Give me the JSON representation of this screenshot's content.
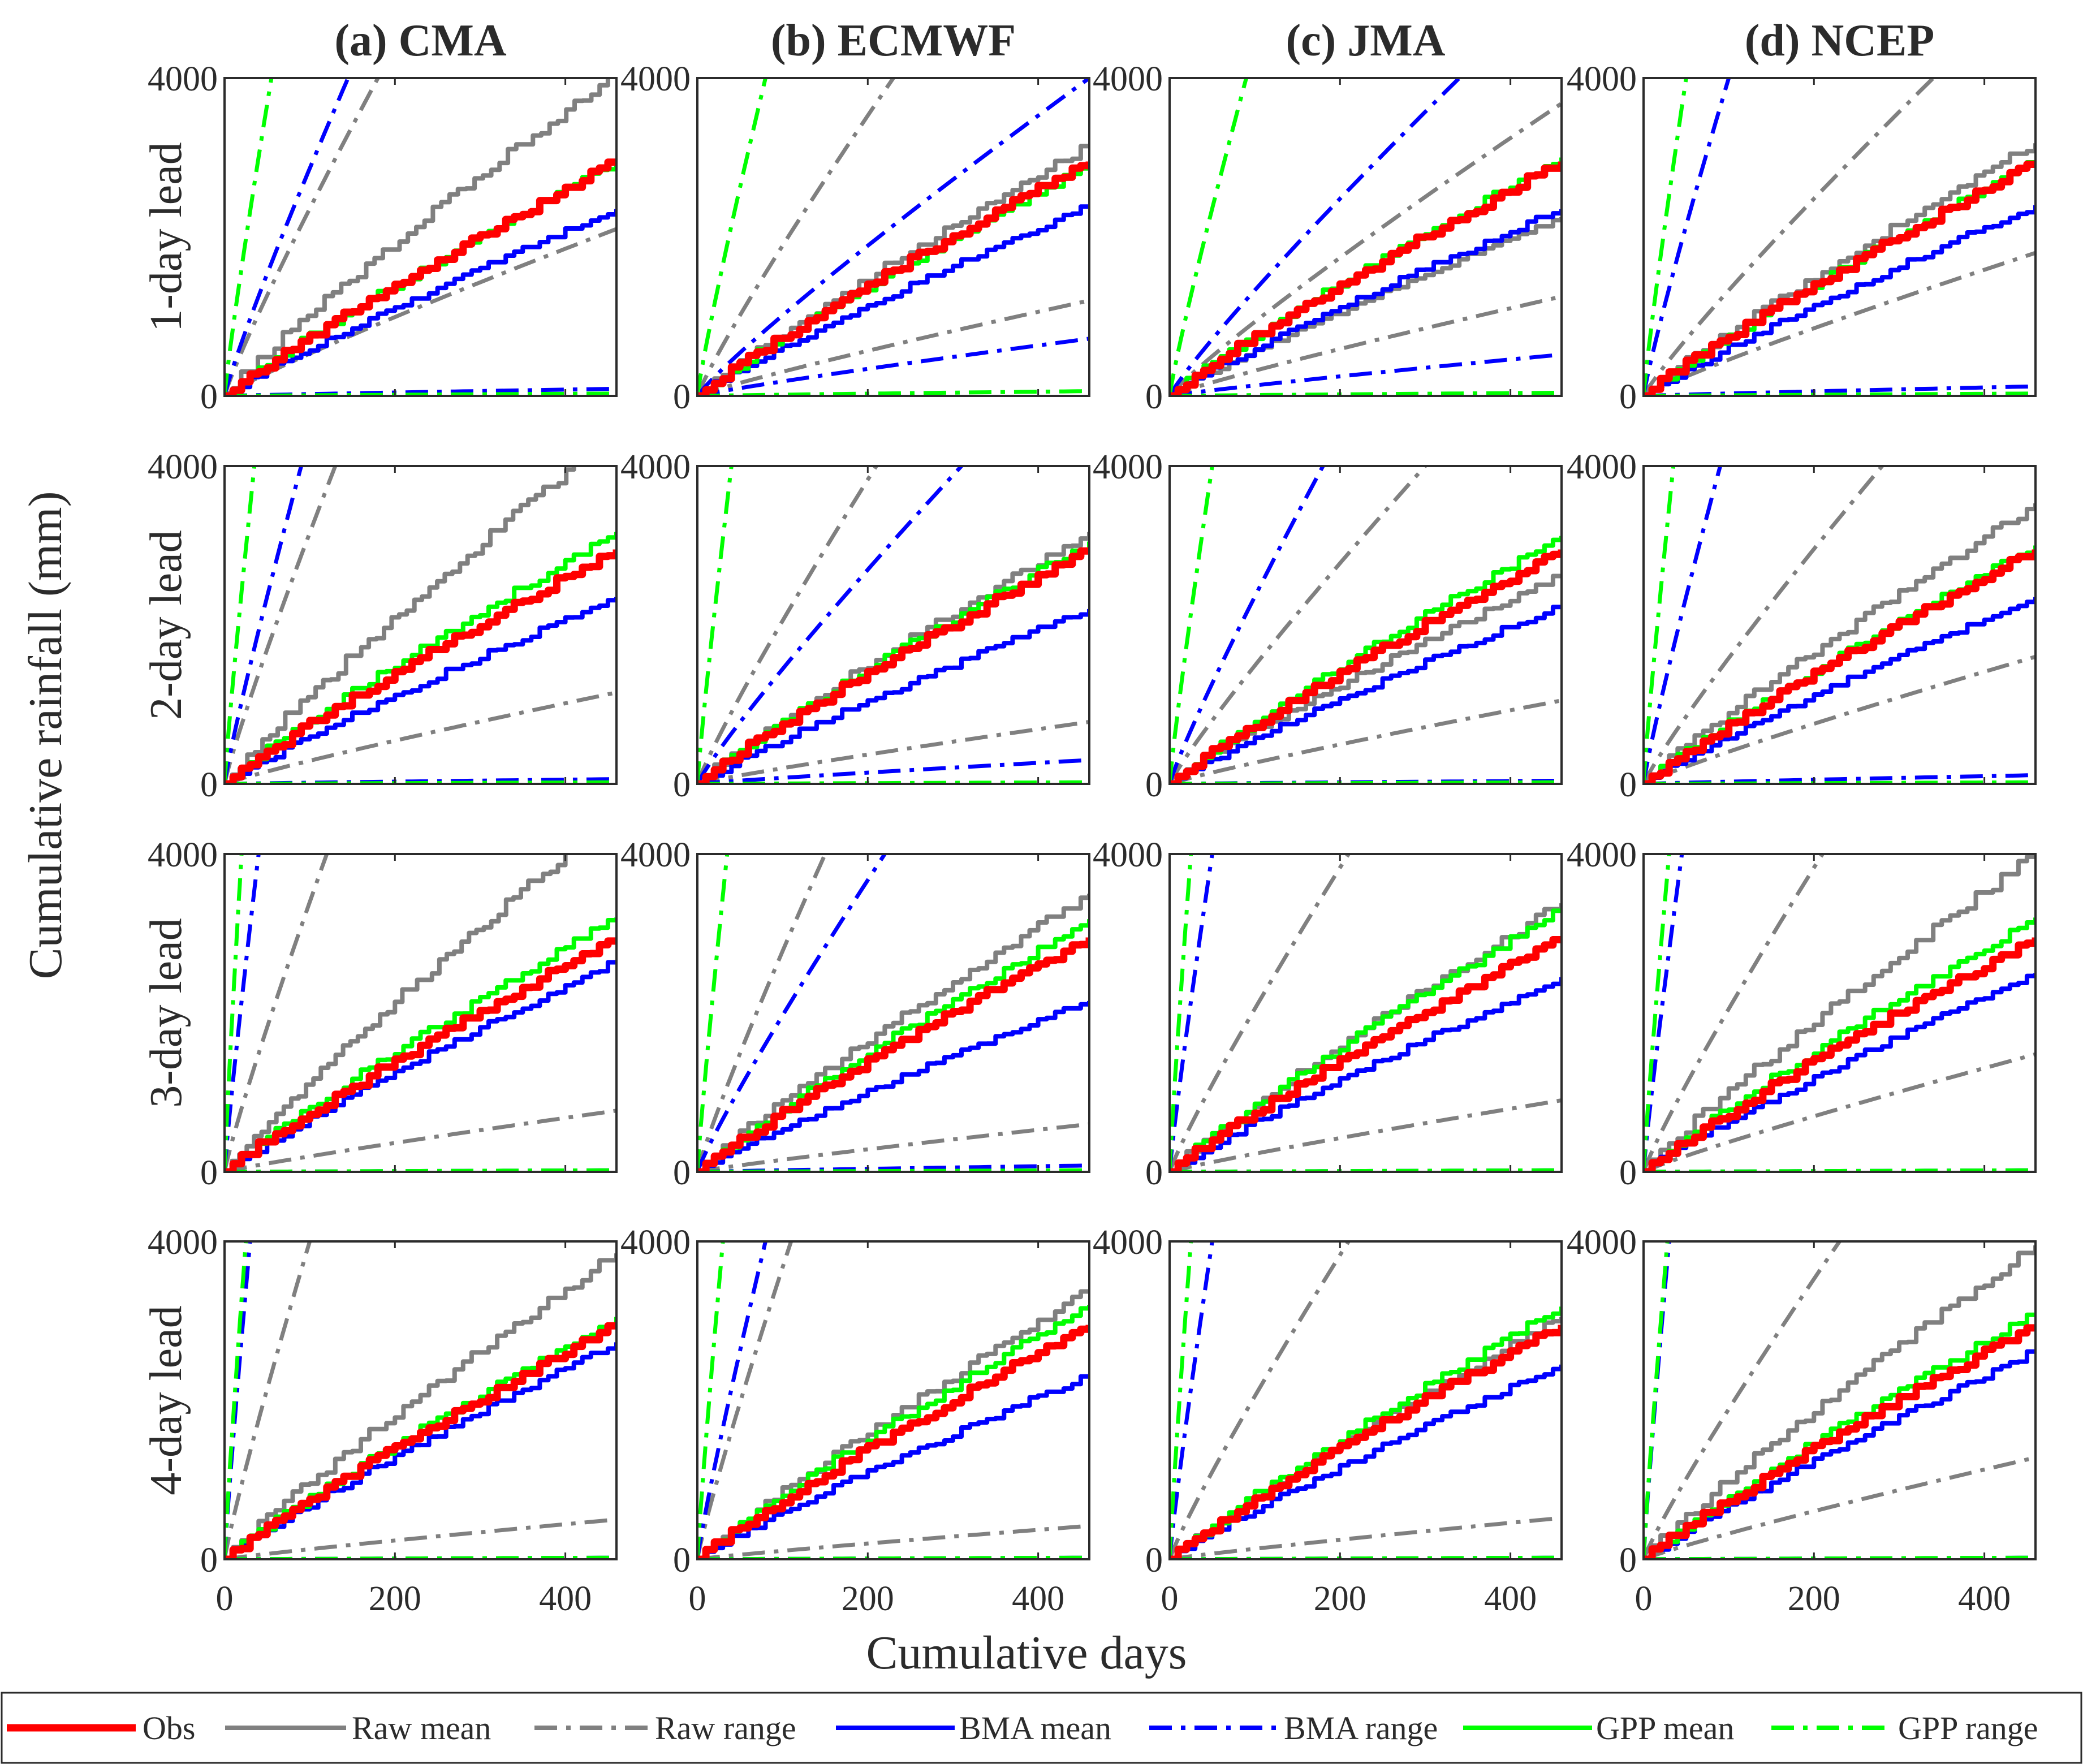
{
  "chart_data": {
    "type": "line",
    "layout_grid": "4 rows x 4 columns of line-chart panels",
    "columns": [
      "(a) CMA",
      "(b) ECMWF",
      "(c) JMA",
      "(d) NCEP"
    ],
    "rows": [
      "1-day lead",
      "2-day lead",
      "3-day lead",
      "4-day lead"
    ],
    "xlabel": "Cumulative days",
    "ylabel": "Cumulative rainfall (mm)",
    "xlim": [
      0,
      460
    ],
    "ylim": [
      0,
      4000
    ],
    "xticks": [
      "0",
      "200",
      "400"
    ],
    "yticks": [
      "0",
      "4000"
    ],
    "grid": false,
    "legend_position": "bottom",
    "series_styles": [
      {
        "name": "Obs",
        "color": "#ff0000",
        "dash": "solid",
        "thick": true
      },
      {
        "name": "Raw mean",
        "color": "#808080",
        "dash": "solid",
        "thick": false
      },
      {
        "name": "Raw range",
        "color": "#808080",
        "dash": "dashdot",
        "thick": false
      },
      {
        "name": "BMA mean",
        "color": "#0000ff",
        "dash": "solid",
        "thick": false
      },
      {
        "name": "BMA range",
        "color": "#0000ff",
        "dash": "dashdot",
        "thick": false
      },
      {
        "name": "GPP mean",
        "color": "#00ff00",
        "dash": "solid",
        "thick": false
      },
      {
        "name": "GPP range",
        "color": "#00ff00",
        "dash": "dashdot",
        "thick": false
      }
    ],
    "series_note": "Each series value is [x at which the line reaches the 4000 mm top (or null), y at x=460 in mm]",
    "panels": [
      {
        "row": 0,
        "col": 0,
        "series": {
          "Obs": [
            null,
            2950
          ],
          "Raw mean": [
            450,
            4000
          ],
          "Raw range upper": [
            180,
            4000
          ],
          "Raw range lower": [
            null,
            2100
          ],
          "BMA mean": [
            null,
            2350
          ],
          "BMA range upper": [
            145,
            4000
          ],
          "BMA range lower": [
            null,
            90
          ],
          "GPP mean": [
            null,
            2950
          ],
          "GPP range upper": [
            55,
            4000
          ],
          "GPP range lower": [
            null,
            30
          ]
        }
      },
      {
        "row": 0,
        "col": 1,
        "series": {
          "Obs": [
            null,
            2950
          ],
          "Raw mean": [
            null,
            3150
          ],
          "Raw range upper": [
            230,
            4000
          ],
          "Raw range lower": [
            null,
            1200
          ],
          "BMA mean": [
            null,
            2400
          ],
          "BMA range upper": [
            460,
            4000
          ],
          "BMA range lower": [
            null,
            720
          ],
          "GPP mean": [
            null,
            2900
          ],
          "GPP range upper": [
            80,
            4000
          ],
          "GPP range lower": [
            null,
            60
          ]
        }
      },
      {
        "row": 0,
        "col": 2,
        "series": {
          "Obs": [
            null,
            2950
          ],
          "Raw mean": [
            null,
            2250
          ],
          "Raw range upper": [
            null,
            3680
          ],
          "Raw range lower": [
            null,
            1250
          ],
          "BMA mean": [
            null,
            2350
          ],
          "BMA range upper": [
            340,
            4000
          ],
          "BMA range lower": [
            null,
            520
          ],
          "GPP mean": [
            null,
            3000
          ],
          "GPP range upper": [
            90,
            4000
          ],
          "GPP range lower": [
            null,
            40
          ]
        }
      },
      {
        "row": 0,
        "col": 3,
        "series": {
          "Obs": [
            null,
            2950
          ],
          "Raw mean": [
            null,
            3180
          ],
          "Raw range upper": [
            340,
            4000
          ],
          "Raw range lower": [
            null,
            1800
          ],
          "BMA mean": [
            null,
            2400
          ],
          "BMA range upper": [
            100,
            4000
          ],
          "BMA range lower": [
            null,
            120
          ],
          "GPP mean": [
            null,
            2960
          ],
          "GPP range upper": [
            50,
            4000
          ],
          "GPP range lower": [
            null,
            30
          ]
        }
      },
      {
        "row": 1,
        "col": 0,
        "series": {
          "Obs": [
            null,
            2950
          ],
          "Raw mean": [
            410,
            4000
          ],
          "Raw range upper": [
            130,
            4000
          ],
          "Raw range lower": [
            null,
            1150
          ],
          "BMA mean": [
            null,
            2350
          ],
          "BMA range upper": [
            90,
            4000
          ],
          "BMA range lower": [
            null,
            60
          ],
          "GPP mean": [
            null,
            3170
          ],
          "GPP range upper": [
            35,
            4000
          ],
          "GPP range lower": [
            null,
            20
          ]
        }
      },
      {
        "row": 1,
        "col": 1,
        "series": {
          "Obs": [
            null,
            2950
          ],
          "Raw mean": [
            null,
            3170
          ],
          "Raw range upper": [
            210,
            4000
          ],
          "Raw range lower": [
            null,
            780
          ],
          "BMA mean": [
            null,
            2200
          ],
          "BMA range upper": [
            310,
            4000
          ],
          "BMA range lower": [
            null,
            300
          ],
          "GPP mean": [
            null,
            3050
          ],
          "GPP range upper": [
            40,
            4000
          ],
          "GPP range lower": [
            null,
            20
          ]
        }
      },
      {
        "row": 1,
        "col": 2,
        "series": {
          "Obs": [
            null,
            2950
          ],
          "Raw mean": [
            null,
            2630
          ],
          "Raw range upper": [
            300,
            4000
          ],
          "Raw range lower": [
            null,
            1050
          ],
          "BMA mean": [
            null,
            2250
          ],
          "BMA range upper": [
            180,
            4000
          ],
          "BMA range lower": [
            null,
            40
          ],
          "GPP mean": [
            null,
            3120
          ],
          "GPP range upper": [
            50,
            4000
          ],
          "GPP range lower": [
            null,
            20
          ]
        }
      },
      {
        "row": 1,
        "col": 3,
        "series": {
          "Obs": [
            null,
            2950
          ],
          "Raw mean": [
            null,
            3530
          ],
          "Raw range upper": [
            280,
            4000
          ],
          "Raw range lower": [
            null,
            1600
          ],
          "BMA mean": [
            null,
            2350
          ],
          "BMA range upper": [
            90,
            4000
          ],
          "BMA range lower": [
            null,
            110
          ],
          "GPP mean": [
            null,
            3000
          ],
          "GPP range upper": [
            35,
            4000
          ],
          "GPP range lower": [
            null,
            20
          ]
        }
      },
      {
        "row": 2,
        "col": 0,
        "series": {
          "Obs": [
            null,
            2950
          ],
          "Raw mean": [
            400,
            4000
          ],
          "Raw range upper": [
            120,
            4000
          ],
          "Raw range lower": [
            null,
            770
          ],
          "BMA mean": [
            null,
            2650
          ],
          "BMA range upper": [
            40,
            4000
          ],
          "BMA range lower": [
            null,
            20
          ],
          "GPP mean": [
            null,
            3200
          ],
          "GPP range upper": [
            20,
            4000
          ],
          "GPP range lower": [
            null,
            20
          ]
        }
      },
      {
        "row": 2,
        "col": 1,
        "series": {
          "Obs": [
            null,
            2950
          ],
          "Raw mean": [
            null,
            3500
          ],
          "Raw range upper": [
            150,
            4000
          ],
          "Raw range lower": [
            null,
            600
          ],
          "BMA mean": [
            null,
            2150
          ],
          "BMA range upper": [
            220,
            4000
          ],
          "BMA range lower": [
            null,
            80
          ],
          "GPP mean": [
            null,
            3180
          ],
          "GPP range upper": [
            35,
            4000
          ],
          "GPP range lower": [
            null,
            20
          ]
        }
      },
      {
        "row": 2,
        "col": 2,
        "series": {
          "Obs": [
            null,
            2950
          ],
          "Raw mean": [
            null,
            3380
          ],
          "Raw range upper": [
            210,
            4000
          ],
          "Raw range lower": [
            null,
            900
          ],
          "BMA mean": [
            null,
            2450
          ],
          "BMA range upper": [
            50,
            4000
          ],
          "BMA range lower": [
            null,
            20
          ],
          "GPP mean": [
            null,
            3300
          ],
          "GPP range upper": [
            25,
            4000
          ],
          "GPP range lower": [
            null,
            20
          ]
        }
      },
      {
        "row": 2,
        "col": 3,
        "series": {
          "Obs": [
            null,
            2950
          ],
          "Raw mean": [
            460,
            4000
          ],
          "Raw range upper": [
            210,
            4000
          ],
          "Raw range lower": [
            null,
            1480
          ],
          "BMA mean": [
            null,
            2500
          ],
          "BMA range upper": [
            45,
            4000
          ],
          "BMA range lower": [
            null,
            20
          ],
          "GPP mean": [
            null,
            3200
          ],
          "GPP range upper": [
            30,
            4000
          ],
          "GPP range lower": [
            null,
            20
          ]
        }
      },
      {
        "row": 3,
        "col": 0,
        "series": {
          "Obs": [
            null,
            2950
          ],
          "Raw mean": [
            null,
            3850
          ],
          "Raw range upper": [
            100,
            4000
          ],
          "Raw range lower": [
            null,
            500
          ],
          "BMA mean": [
            null,
            2730
          ],
          "BMA range upper": [
            30,
            4000
          ],
          "BMA range lower": [
            null,
            20
          ],
          "GPP mean": [
            null,
            3050
          ],
          "GPP range upper": [
            25,
            4000
          ],
          "GPP range lower": [
            null,
            20
          ]
        }
      },
      {
        "row": 3,
        "col": 1,
        "series": {
          "Obs": [
            null,
            2950
          ],
          "Raw mean": [
            null,
            3380
          ],
          "Raw range upper": [
            110,
            4000
          ],
          "Raw range lower": [
            null,
            420
          ],
          "BMA mean": [
            null,
            2320
          ],
          "BMA range upper": [
            80,
            4000
          ],
          "BMA range lower": [
            null,
            20
          ],
          "GPP mean": [
            null,
            3200
          ],
          "GPP range upper": [
            30,
            4000
          ],
          "GPP range lower": [
            null,
            20
          ]
        }
      },
      {
        "row": 3,
        "col": 2,
        "series": {
          "Obs": [
            null,
            2950
          ],
          "Raw mean": [
            null,
            3050
          ],
          "Raw range upper": [
            210,
            4000
          ],
          "Raw range lower": [
            null,
            520
          ],
          "BMA mean": [
            null,
            2450
          ],
          "BMA range upper": [
            50,
            4000
          ],
          "BMA range lower": [
            null,
            20
          ],
          "GPP mean": [
            null,
            3180
          ],
          "GPP range upper": [
            25,
            4000
          ],
          "GPP range lower": [
            null,
            20
          ]
        }
      },
      {
        "row": 3,
        "col": 3,
        "series": {
          "Obs": [
            null,
            2950
          ],
          "Raw mean": [
            null,
            3950
          ],
          "Raw range upper": [
            230,
            4000
          ],
          "Raw range lower": [
            null,
            1280
          ],
          "BMA mean": [
            null,
            2620
          ],
          "BMA range upper": [
            30,
            4000
          ],
          "BMA range lower": [
            null,
            20
          ],
          "GPP mean": [
            null,
            3100
          ],
          "GPP range upper": [
            28,
            4000
          ],
          "GPP range lower": [
            null,
            20
          ]
        }
      }
    ]
  }
}
